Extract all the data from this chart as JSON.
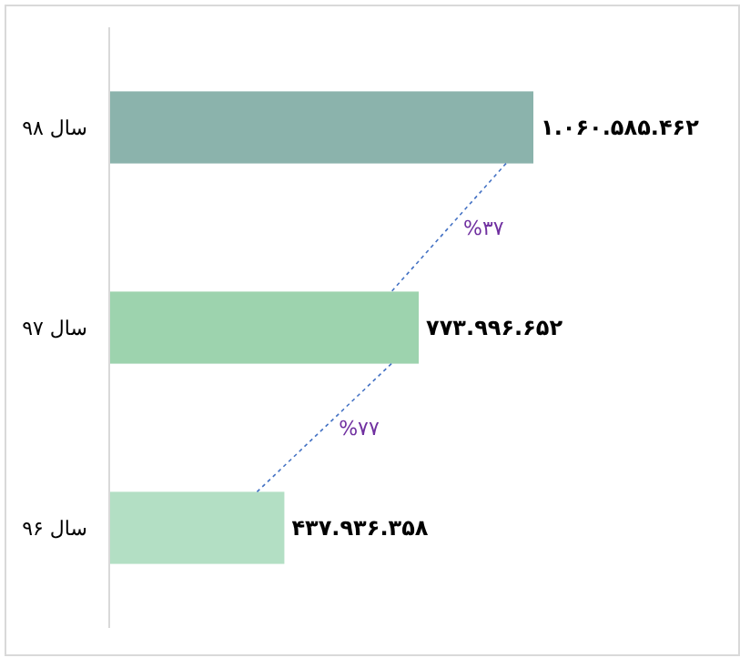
{
  "chart_data": {
    "type": "bar",
    "orientation": "horizontal",
    "categories": [
      "سال ۹۸",
      "سال ۹۷",
      "سال ۹۶"
    ],
    "values": [
      1060585462,
      773996652,
      437936358
    ],
    "colors": [
      "#8bb3ac",
      "#9dd3ae",
      "#b3dfc4"
    ],
    "value_labels": [
      "۱.۰۶۰.۵۸۵.۴۶۲",
      "۷۷۳.۹۹۶.۶۵۲",
      "۴۳۷.۹۳۶.۳۵۸"
    ],
    "annotations": [
      "%۳۷",
      "%۷۷"
    ]
  }
}
